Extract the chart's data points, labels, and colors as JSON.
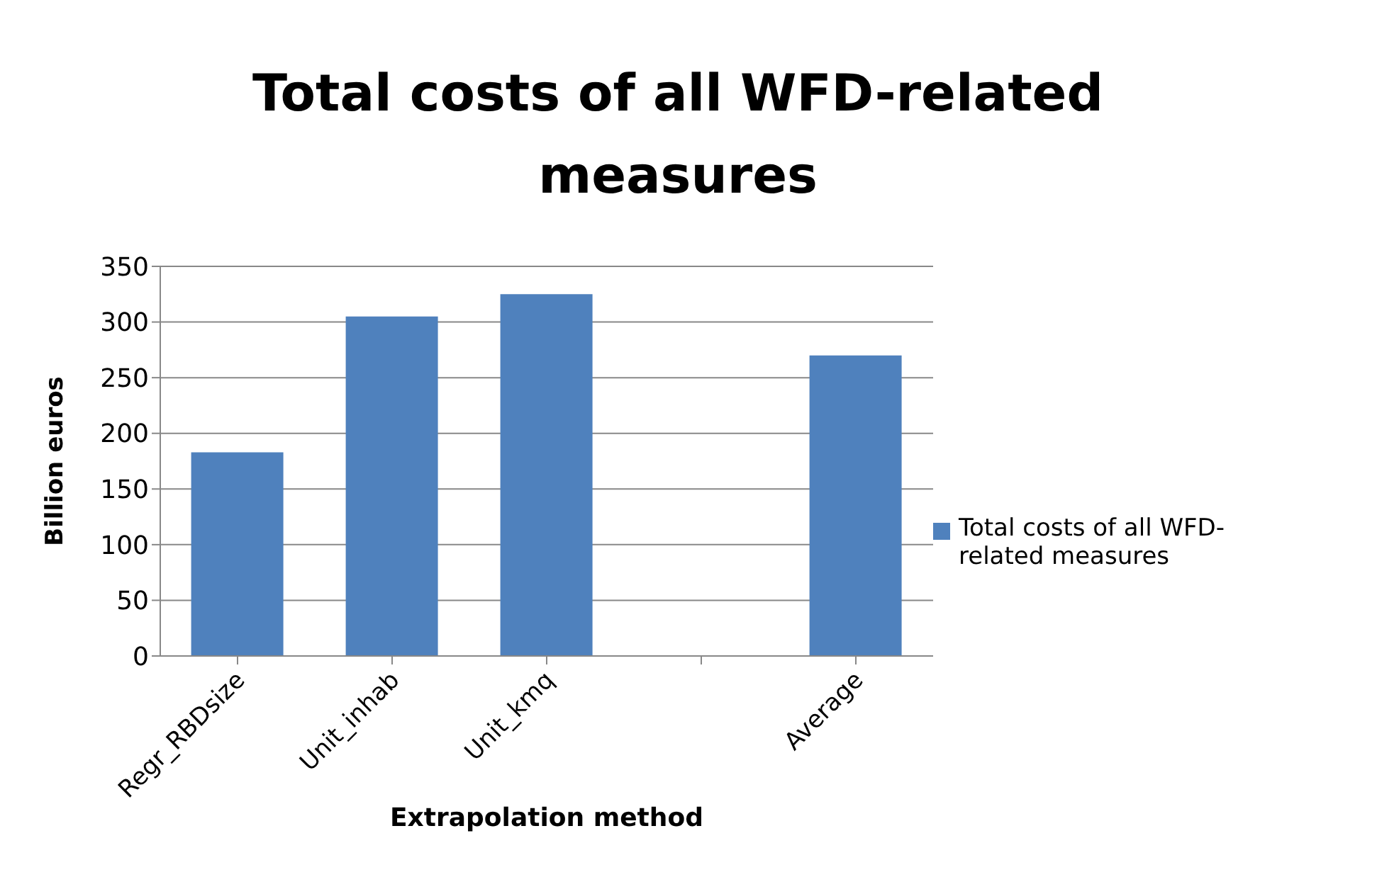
{
  "chart_data": {
    "type": "bar",
    "title": "Total costs of all WFD-related measures",
    "xlabel": "Extrapolation method",
    "ylabel": "Billion euros",
    "categories": [
      "Regr_RBDsize",
      "Unit_inhab",
      "Unit_kmq",
      null,
      "Average"
    ],
    "series": [
      {
        "name": "Total costs of all WFD-related measures",
        "color": "#4f81bd",
        "values": [
          183,
          305,
          325,
          null,
          270
        ]
      }
    ],
    "ylim": [
      0,
      350
    ],
    "yticks": [
      0,
      50,
      100,
      150,
      200,
      250,
      300,
      350
    ],
    "grid": "y",
    "legend": "right"
  }
}
